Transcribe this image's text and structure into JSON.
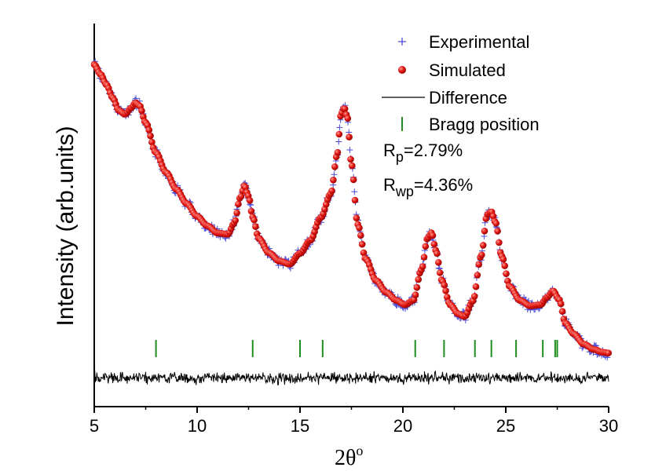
{
  "chart_data": {
    "type": "scatter",
    "title": "",
    "xlabel": "2θ",
    "xlabel_superscript": "o",
    "ylabel": "Intensity (arb.units)",
    "xlim": [
      5,
      30
    ],
    "ylim": [
      0,
      1
    ],
    "x_ticks": [
      5,
      10,
      15,
      20,
      25,
      30
    ],
    "y_ticks_shown": false,
    "grid": false,
    "legend_position": "top-right",
    "series": [
      {
        "name": "Experimental",
        "marker": "plus",
        "color": "#4b4bd6"
      },
      {
        "name": "Simulated",
        "marker": "sphere",
        "color": "#e0140f"
      },
      {
        "name": "Difference",
        "marker": "line",
        "color": "#000000"
      },
      {
        "name": "Bragg position",
        "marker": "vbar",
        "color": "#1e8c1e"
      }
    ],
    "profile_points": [
      [
        5.0,
        0.893
      ],
      [
        5.3,
        0.868
      ],
      [
        5.6,
        0.84
      ],
      [
        5.9,
        0.806
      ],
      [
        6.2,
        0.773
      ],
      [
        6.5,
        0.763
      ],
      [
        6.8,
        0.78
      ],
      [
        7.0,
        0.793
      ],
      [
        7.2,
        0.786
      ],
      [
        7.5,
        0.741
      ],
      [
        8.0,
        0.663
      ],
      [
        8.5,
        0.611
      ],
      [
        9.0,
        0.567
      ],
      [
        9.5,
        0.53
      ],
      [
        10.0,
        0.497
      ],
      [
        10.5,
        0.472
      ],
      [
        11.0,
        0.453
      ],
      [
        11.5,
        0.45
      ],
      [
        11.8,
        0.479
      ],
      [
        12.1,
        0.546
      ],
      [
        12.3,
        0.577
      ],
      [
        12.5,
        0.55
      ],
      [
        12.7,
        0.495
      ],
      [
        13.0,
        0.439
      ],
      [
        13.5,
        0.401
      ],
      [
        14.0,
        0.38
      ],
      [
        14.5,
        0.372
      ],
      [
        15.0,
        0.4
      ],
      [
        15.5,
        0.434
      ],
      [
        16.0,
        0.493
      ],
      [
        16.5,
        0.556
      ],
      [
        16.8,
        0.657
      ],
      [
        17.0,
        0.765
      ],
      [
        17.15,
        0.78
      ],
      [
        17.3,
        0.756
      ],
      [
        17.5,
        0.633
      ],
      [
        17.8,
        0.476
      ],
      [
        18.2,
        0.385
      ],
      [
        18.7,
        0.329
      ],
      [
        19.2,
        0.298
      ],
      [
        19.7,
        0.277
      ],
      [
        20.1,
        0.266
      ],
      [
        20.5,
        0.277
      ],
      [
        20.9,
        0.357
      ],
      [
        21.2,
        0.44
      ],
      [
        21.4,
        0.454
      ],
      [
        21.6,
        0.408
      ],
      [
        21.9,
        0.329
      ],
      [
        22.3,
        0.266
      ],
      [
        22.7,
        0.242
      ],
      [
        23.0,
        0.235
      ],
      [
        23.4,
        0.276
      ],
      [
        23.8,
        0.393
      ],
      [
        24.1,
        0.502
      ],
      [
        24.3,
        0.509
      ],
      [
        24.5,
        0.481
      ],
      [
        24.8,
        0.393
      ],
      [
        25.2,
        0.313
      ],
      [
        25.7,
        0.277
      ],
      [
        26.2,
        0.263
      ],
      [
        26.7,
        0.266
      ],
      [
        27.0,
        0.285
      ],
      [
        27.3,
        0.302
      ],
      [
        27.6,
        0.279
      ],
      [
        27.9,
        0.218
      ],
      [
        28.3,
        0.19
      ],
      [
        28.8,
        0.163
      ],
      [
        29.3,
        0.149
      ],
      [
        29.7,
        0.142
      ],
      [
        30.0,
        0.14
      ]
    ],
    "bragg_positions": [
      8.0,
      12.7,
      15.0,
      16.1,
      20.6,
      22.0,
      23.5,
      24.3,
      25.5,
      26.8,
      27.4,
      27.5
    ],
    "difference_baseline": 0.075,
    "annotations": {
      "rp_main": "R",
      "rp_sub": "p",
      "rp_value": "=2.79%",
      "rwp_main": "R",
      "rwp_sub": "wp",
      "rwp_value": "=4.36%"
    },
    "colors": {
      "experimental": "#4b4bd6",
      "simulated": "#e0140f",
      "simulated_highlight": "#ff8c84",
      "difference": "#000000",
      "bragg": "#1e8c1e",
      "axes": "#000000"
    }
  }
}
